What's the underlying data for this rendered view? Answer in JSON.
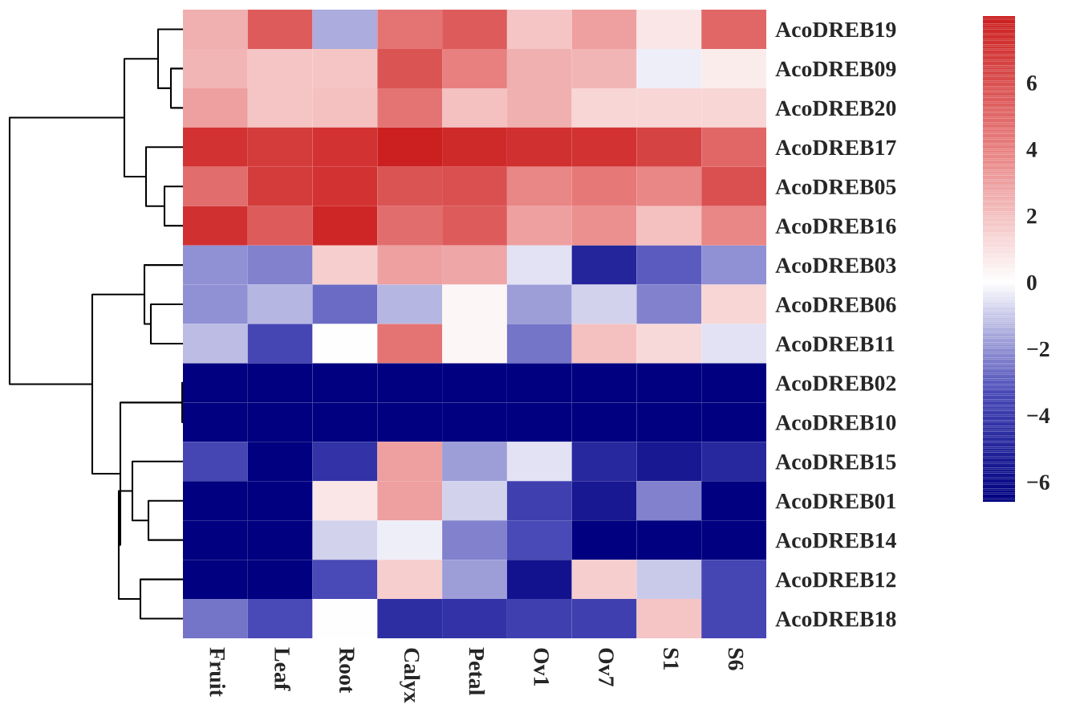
{
  "chart_data": {
    "type": "heatmap",
    "categories": [
      "Fruit",
      "Leaf",
      "Root",
      "Calyx",
      "Petal",
      "Ov1",
      "Ov7",
      "S1",
      "S6"
    ],
    "y_categories": [
      "AcoDREB19",
      "AcoDREB09",
      "AcoDREB20",
      "AcoDREB17",
      "AcoDREB05",
      "AcoDREB16",
      "AcoDREB03",
      "AcoDREB06",
      "AcoDREB11",
      "AcoDREB02",
      "AcoDREB10",
      "AcoDREB15",
      "AcoDREB01",
      "AcoDREB14",
      "AcoDREB12",
      "AcoDREB18"
    ],
    "cells": [
      [
        2.5,
        5.5,
        -1.5,
        4.5,
        5.5,
        1.8,
        3,
        0.8,
        5
      ],
      [
        2.3,
        1.8,
        1.8,
        5.8,
        4,
        2.5,
        2.3,
        -0.3,
        0.6
      ],
      [
        3,
        1.8,
        2,
        4.5,
        2,
        2.5,
        1.3,
        1.3,
        1.3
      ],
      [
        7.2,
        6.8,
        7.2,
        7.9,
        7.5,
        7.3,
        7.2,
        6.5,
        5
      ],
      [
        4.8,
        6.8,
        7.2,
        5.8,
        6,
        3.8,
        4.3,
        3.8,
        6
      ],
      [
        7.3,
        5.5,
        7.7,
        4.8,
        5.5,
        3,
        3.5,
        2,
        3.8
      ],
      [
        -2,
        -2.3,
        1.5,
        3,
        2.8,
        -0.5,
        -5,
        -3,
        -2
      ],
      [
        -2,
        -1.3,
        -2.7,
        -1.3,
        0.3,
        -1.8,
        -0.8,
        -2.3,
        1.3
      ],
      [
        -1.2,
        -3.5,
        0,
        4.5,
        0.3,
        -2.5,
        2,
        1.2,
        -0.5
      ],
      [
        -6.6,
        -6.6,
        -6.6,
        -6.6,
        -6.6,
        -6.6,
        -6.6,
        -6.6,
        -6.6
      ],
      [
        -6.6,
        -6.6,
        -6.6,
        -6.6,
        -6.6,
        -6.6,
        -6.6,
        -6.6,
        -6.6
      ],
      [
        -3.5,
        -6.6,
        -4.3,
        3,
        -1.8,
        -0.5,
        -4.8,
        -5.5,
        -4.8
      ],
      [
        -6.6,
        -6.6,
        0.8,
        3,
        -0.8,
        -3.8,
        -5.5,
        -2.3,
        -6.6
      ],
      [
        -6.6,
        -6.6,
        -0.8,
        -0.3,
        -2.3,
        -3.3,
        -6.6,
        -6.6,
        -6.6
      ],
      [
        -6.6,
        -6.6,
        -3.3,
        1.5,
        -1.8,
        -5.8,
        1.5,
        -1,
        -3.5
      ],
      [
        -2.5,
        -3.3,
        0,
        -4.5,
        -4.3,
        -3.8,
        -3.8,
        1.8,
        -3.5
      ]
    ],
    "clim": [
      -6.6,
      8.0
    ],
    "cticks": [
      {
        "value": -6,
        "label": "−6"
      },
      {
        "value": -4,
        "label": "−4"
      },
      {
        "value": -2,
        "label": "−2"
      },
      0,
      2,
      4,
      6
    ]
  }
}
